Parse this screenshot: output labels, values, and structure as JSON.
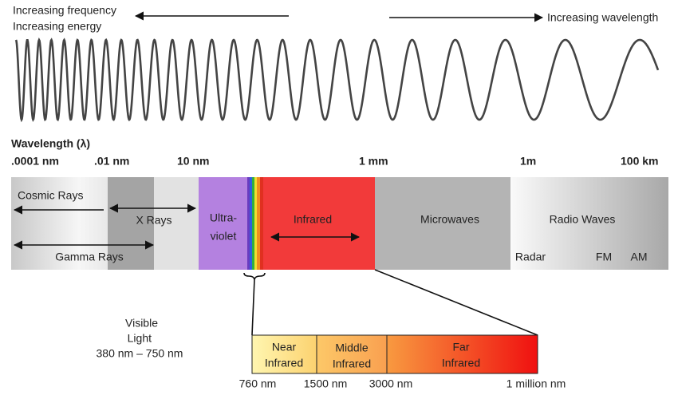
{
  "header": {
    "frequency": "Increasing frequency",
    "energy": "Increasing energy",
    "wavelength": "Increasing wavelength"
  },
  "axis": {
    "title": "Wavelength (λ)",
    "ticks": [
      ".0001 nm",
      ".01 nm",
      "10 nm",
      "1 mm",
      "1m",
      "100 km"
    ]
  },
  "bands": {
    "cosmic": "Cosmic Rays",
    "xrays": "X Rays",
    "gamma": "Gamma Rays",
    "uv_line1": "Ultra-",
    "uv_line2": "violet",
    "infrared": "Infrared",
    "microwaves": "Microwaves",
    "radio": "Radio Waves",
    "radar": "Radar",
    "fm": "FM",
    "am": "AM"
  },
  "visible": {
    "line1": "Visible",
    "line2": "Light",
    "range": "380 nm – 750 nm"
  },
  "infrared_detail": {
    "segments": [
      {
        "line1": "Near",
        "line2": "Infrared"
      },
      {
        "line1": "Middle",
        "line2": "Infrared"
      },
      {
        "line1": "Far",
        "line2": "Infrared"
      }
    ],
    "ticks": [
      "760 nm",
      "1500 nm",
      "3000 nm",
      "1 million nm"
    ]
  }
}
